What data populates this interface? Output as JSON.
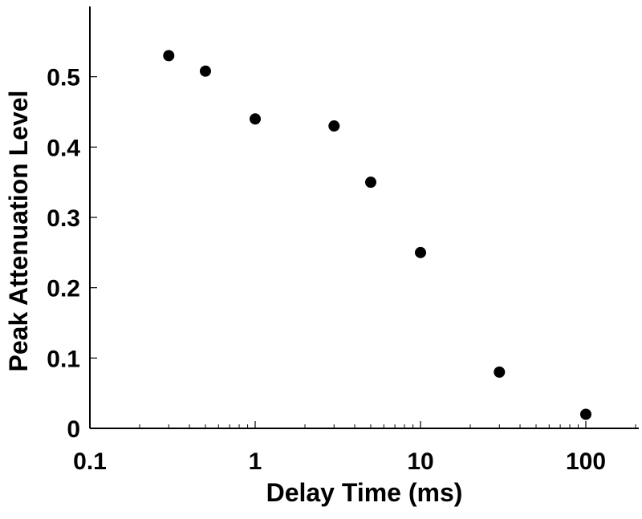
{
  "chart_data": {
    "type": "scatter",
    "title": "",
    "xlabel": "Delay Time (ms)",
    "ylabel": "Peak Attenuation Level",
    "x_scale": "log",
    "xlim": [
      0.1,
      100
    ],
    "ylim": [
      0,
      0.6
    ],
    "x_ticks": [
      0.1,
      1,
      10,
      100
    ],
    "x_tick_labels": [
      "0.1",
      "1",
      "10",
      "100"
    ],
    "y_ticks": [
      0,
      0.1,
      0.2,
      0.3,
      0.4,
      0.5
    ],
    "y_tick_labels": [
      "0",
      "0.1",
      "0.2",
      "0.3",
      "0.4",
      "0.5"
    ],
    "grid": false,
    "legend": "none",
    "marker_color": "#000000",
    "series": [
      {
        "x": [
          0.3,
          0.5,
          1,
          3,
          5,
          10,
          30,
          100
        ],
        "y": [
          0.53,
          0.508,
          0.44,
          0.43,
          0.35,
          0.25,
          0.08,
          0.02
        ]
      }
    ]
  }
}
